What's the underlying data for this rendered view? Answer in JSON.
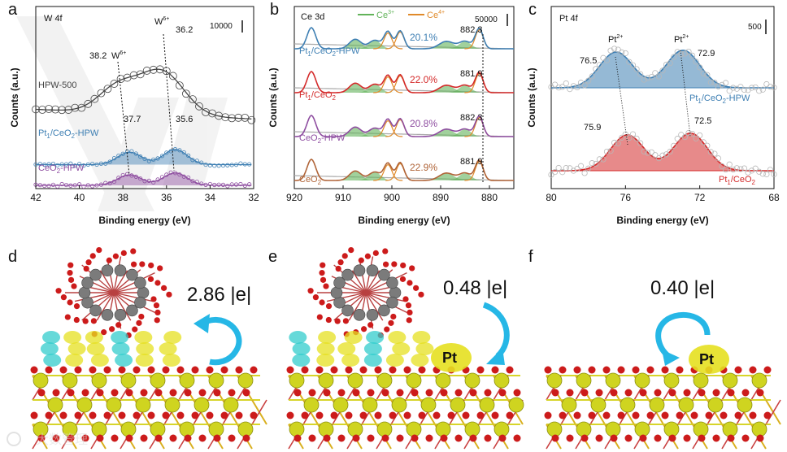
{
  "colors": {
    "blue": "#3e7fb3",
    "red": "#d42a2a",
    "purple": "#8e4da0",
    "brown": "#b06438",
    "green": "#62b35a",
    "orange": "#e08a2a",
    "grey": "#444444",
    "cyan": "#26b7e6",
    "ceria": "#cfd420",
    "oxygen": "#cc1b1b",
    "tungsten": "#7b7b7b",
    "charge_yellow": "#e6e020",
    "charge_cyan": "#33cccc"
  },
  "chart_data": [
    {
      "panel": "a",
      "type": "line",
      "title": "W 4f",
      "xlabel": "Binding energy (eV)",
      "ylabel": "Counts (a.u.)",
      "xlim": [
        42,
        32
      ],
      "xticks": [
        "42",
        "40",
        "38",
        "36",
        "34",
        "32"
      ],
      "scale_bar": "10000",
      "series": [
        {
          "name": "HPW-500",
          "color": "#444444",
          "offset": 2.4,
          "peaks": [
            [
              38.2,
              0.95,
              0.9
            ],
            [
              36.2,
              1.55,
              1.0
            ]
          ],
          "base": 0.35,
          "markers": true,
          "fill": false
        },
        {
          "name": "Pt1/CeO2-HPW",
          "color": "#3e7fb3",
          "offset": 0.75,
          "peaks": [
            [
              37.7,
              0.45,
              0.55
            ],
            [
              35.6,
              0.55,
              0.55
            ]
          ],
          "base": 0.0,
          "markers": true,
          "fill": true
        },
        {
          "name": "CeO2-HPW",
          "color": "#8e4da0",
          "offset": 0.0,
          "peaks": [
            [
              37.7,
              0.38,
              0.55
            ],
            [
              35.6,
              0.45,
              0.55
            ]
          ],
          "base": 0.0,
          "markers": true,
          "fill": true
        }
      ],
      "annotations": [
        {
          "text": "38.2",
          "sup": "W",
          "sup_ox": "6+",
          "x": 38.2
        },
        {
          "text": "36.2",
          "sup": "W",
          "sup_ox": "6+",
          "x": 36.2
        },
        {
          "text": "37.7",
          "x": 37.7
        },
        {
          "text": "35.6",
          "x": 35.6
        }
      ]
    },
    {
      "panel": "b",
      "type": "line",
      "title": "Ce 3d",
      "xlabel": "Binding energy (eV)",
      "ylabel": "Counts (a.u.)",
      "xlim": [
        920,
        875
      ],
      "xticks": [
        "920",
        "910",
        "900",
        "890",
        "880"
      ],
      "scale_bar": "50000",
      "legend": [
        "Ce3+",
        "Ce4+"
      ],
      "series": [
        {
          "name": "Pt1/CeO2-HPW",
          "color": "#3e7fb3",
          "percent": "20.1%",
          "peak_label": "882.3",
          "offset": 3
        },
        {
          "name": "Pt1/CeO2",
          "color": "#d42a2a",
          "percent": "22.0%",
          "peak_label": "881.9",
          "offset": 2
        },
        {
          "name": "CeO2-HPW",
          "color": "#8e4da0",
          "percent": "20.8%",
          "peak_label": "882.3",
          "offset": 1
        },
        {
          "name": "CeO2",
          "color": "#b06438",
          "percent": "22.9%",
          "peak_label": "881.9",
          "offset": 0
        }
      ],
      "peaks": [
        [
          916.5,
          1.0,
          0.9
        ],
        [
          907.5,
          0.45,
          1.2
        ],
        [
          903.5,
          0.4,
          1.2
        ],
        [
          900.8,
          0.8,
          0.8
        ],
        [
          898.3,
          0.85,
          0.8
        ],
        [
          888.8,
          0.35,
          1.5
        ],
        [
          885.0,
          0.35,
          1.2
        ],
        [
          882.1,
          0.95,
          0.8
        ]
      ]
    },
    {
      "panel": "c",
      "type": "line",
      "title": "Pt 4f",
      "xlabel": "Binding energy (eV)",
      "ylabel": "Counts (a.u.)",
      "xlim": [
        80,
        68
      ],
      "xticks": [
        "80",
        "76",
        "72",
        "68"
      ],
      "scale_bar": "500",
      "series": [
        {
          "name": "Pt1/CeO2-HPW",
          "color": "#3e7fb3",
          "offset": 1,
          "peaks": [
            [
              76.5,
              1.0,
              0.9
            ],
            [
              72.9,
              1.05,
              0.9
            ]
          ]
        },
        {
          "name": "Pt1/CeO2",
          "color": "#d42a2a",
          "offset": 0,
          "peaks": [
            [
              75.9,
              1.0,
              0.9
            ],
            [
              72.5,
              1.05,
              0.9
            ]
          ]
        }
      ],
      "annotations": [
        {
          "text": "76.5",
          "x": 76.5,
          "label": "Pt",
          "ox": "2+"
        },
        {
          "text": "72.9",
          "x": 72.9,
          "label": "Pt",
          "ox": "2+"
        },
        {
          "text": "75.9",
          "x": 75.9
        },
        {
          "text": "72.5",
          "x": 72.5
        }
      ]
    }
  ],
  "structures": [
    {
      "panel": "d",
      "charge": "2.86 |e|",
      "has_cluster": true,
      "pt_label": ""
    },
    {
      "panel": "e",
      "charge": "0.48 |e|",
      "has_cluster": true,
      "pt_label": "Pt"
    },
    {
      "panel": "f",
      "charge": "0.40 |e|",
      "has_cluster": false,
      "pt_label": "Pt"
    }
  ],
  "panel_letters": [
    "a",
    "b",
    "c",
    "d",
    "e",
    "f"
  ],
  "watermark": "大数管理"
}
